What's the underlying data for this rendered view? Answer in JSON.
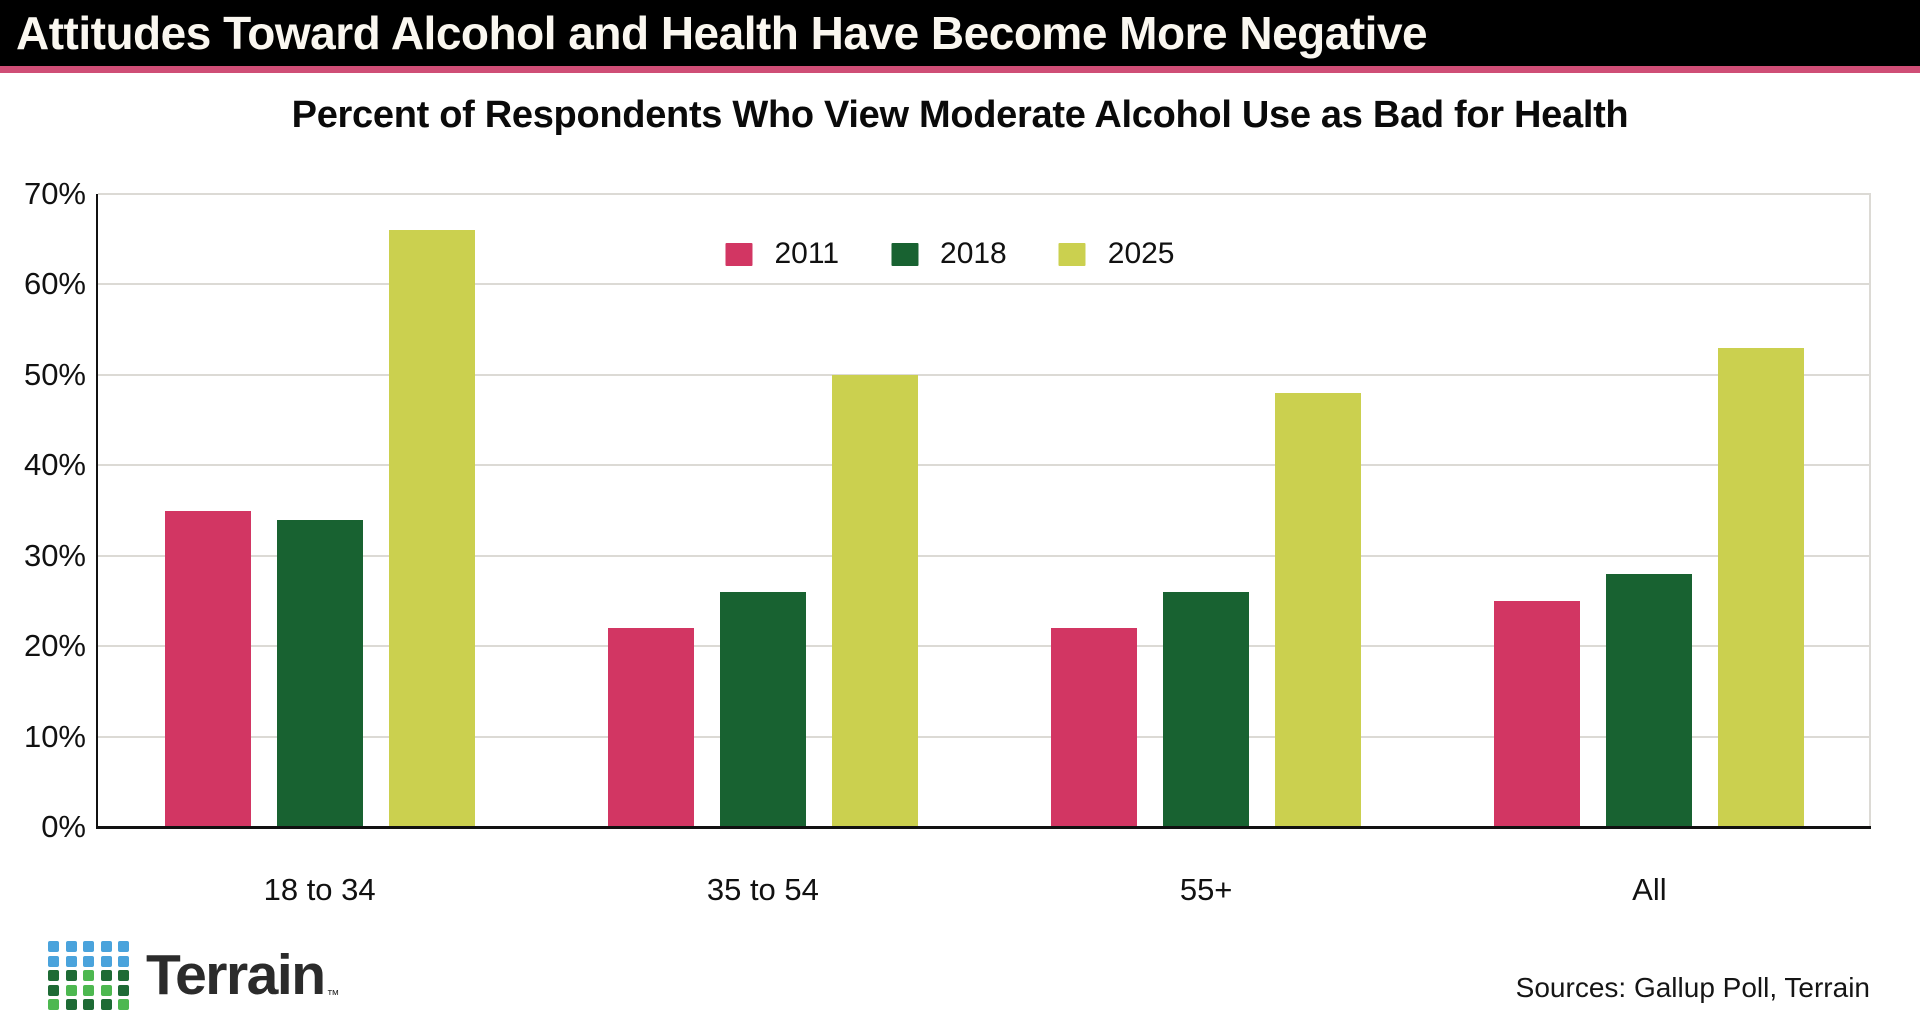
{
  "header": {
    "title": "Attitudes Toward Alcohol and Health Have Become More Negative"
  },
  "colors": {
    "header_bg": "#000000",
    "header_text": "#faf7f0",
    "accent_stripe": "#cf4e76",
    "gridline": "#dcdad5",
    "axis": "#111111"
  },
  "chart_data": {
    "type": "bar",
    "title": "Percent of Respondents Who View Moderate Alcohol Use as Bad for Health",
    "categories": [
      "18 to 34",
      "35 to 54",
      "55+",
      "All"
    ],
    "series": [
      {
        "name": "2011",
        "color": "#d23663",
        "values": [
          35,
          22,
          22,
          25
        ]
      },
      {
        "name": "2018",
        "color": "#186231",
        "values": [
          34,
          26,
          26,
          28
        ]
      },
      {
        "name": "2025",
        "color": "#cbd04f",
        "values": [
          66,
          50,
          48,
          53
        ]
      }
    ],
    "xlabel": "",
    "ylabel": "",
    "ylim": [
      0,
      70
    ],
    "y_ticks": [
      "0%",
      "10%",
      "20%",
      "30%",
      "40%",
      "50%",
      "60%",
      "70%"
    ],
    "grid": true,
    "legend_position": "top-center"
  },
  "footer": {
    "brand": "Terrain",
    "trademark": "™",
    "sources": "Sources: Gallup Poll, Terrain",
    "logo": {
      "pattern": [
        "bbbbb",
        "bbbbb",
        "ddldd",
        "dllld",
        "ldddl"
      ],
      "colors": {
        "b": "#4aa3dc",
        "d": "#1e6b35",
        "l": "#4db850"
      }
    }
  }
}
